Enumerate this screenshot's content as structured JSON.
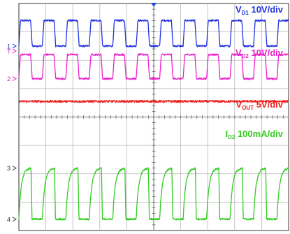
{
  "chart_data": {
    "type": "line",
    "title": "",
    "instrument": "oscilloscope",
    "grid": "on",
    "grid_divisions": {
      "horizontal": 10,
      "vertical": 8
    },
    "x": {
      "label": "",
      "unit": "div",
      "range": [
        0,
        10
      ]
    },
    "trigger_marker": "T",
    "series": [
      {
        "name": "VD1 10V/div",
        "label_main": "V",
        "label_sub": "D1",
        "label_rest": " 10V/div",
        "color": "#2233dd",
        "channel_marker": "1",
        "volts_per_div": 10,
        "waveform": "square",
        "period_div": 0.87,
        "high_div": 3.4,
        "low_div": 2.5,
        "rise_div": 0.06,
        "noise_div": 0.03
      },
      {
        "name": "VD2 10V/div",
        "label_main": "V",
        "label_sub": "D2",
        "label_rest": " 10V/div",
        "color": "#ee22cc",
        "channel_marker": "2",
        "volts_per_div": 10,
        "waveform": "square",
        "period_div": 0.87,
        "high_div": 2.2,
        "low_div": 1.35,
        "rise_div": 0.06,
        "noise_div": 0.03
      },
      {
        "name": "VOUT 5V/div",
        "label_main": "V",
        "label_sub": "OUT",
        "label_rest": " 5V/div",
        "color": "#ee2222",
        "waveform": "dc",
        "level_div": 0.55,
        "noise_div": 0.04
      },
      {
        "name": "ID2 100mA/div",
        "label_main": "I",
        "label_sub": "D2",
        "label_rest": " 100mA/div",
        "color": "#33cc22",
        "channel_marker": "3",
        "amps_per_div": 0.1,
        "waveform": "exponential-rise",
        "period_div": 0.87,
        "high_div": -1.8,
        "low_div": -3.6,
        "rise_time_constant_div": 0.09,
        "noise_div": 0.03
      }
    ],
    "reference_marker": "4"
  }
}
